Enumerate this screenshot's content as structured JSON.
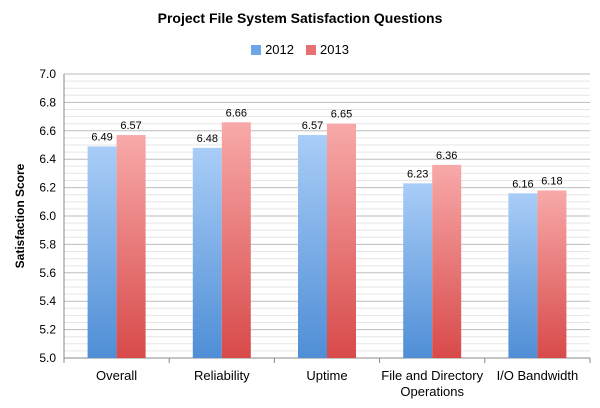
{
  "chart_data": {
    "type": "bar",
    "title": "Project File System Satisfaction Questions",
    "xlabel": "",
    "ylabel": "Satisfaction Score",
    "ylim": [
      5.0,
      7.0
    ],
    "yticks": [
      "5.0",
      "5.2",
      "5.4",
      "5.6",
      "5.8",
      "6.0",
      "6.2",
      "6.4",
      "6.6",
      "6.8",
      "7.0"
    ],
    "grid": true,
    "legend_position": "top-center",
    "categories": [
      [
        "Overall"
      ],
      [
        "Reliability"
      ],
      [
        "Uptime"
      ],
      [
        "File and Directory",
        "Operations"
      ],
      [
        "I/O Bandwidth"
      ]
    ],
    "series": [
      {
        "name": "2012",
        "values": [
          6.49,
          6.48,
          6.57,
          6.23,
          6.16
        ],
        "labels": [
          "6.49",
          "6.48",
          "6.57",
          "6.23",
          "6.16"
        ],
        "color": "#4f8ed6",
        "color_light": "#a9cdf7"
      },
      {
        "name": "2013",
        "values": [
          6.57,
          6.66,
          6.65,
          6.36,
          6.18
        ],
        "labels": [
          "6.57",
          "6.66",
          "6.65",
          "6.36",
          "6.18"
        ],
        "color": "#d84a4a",
        "color_light": "#f8a9a9"
      }
    ]
  }
}
